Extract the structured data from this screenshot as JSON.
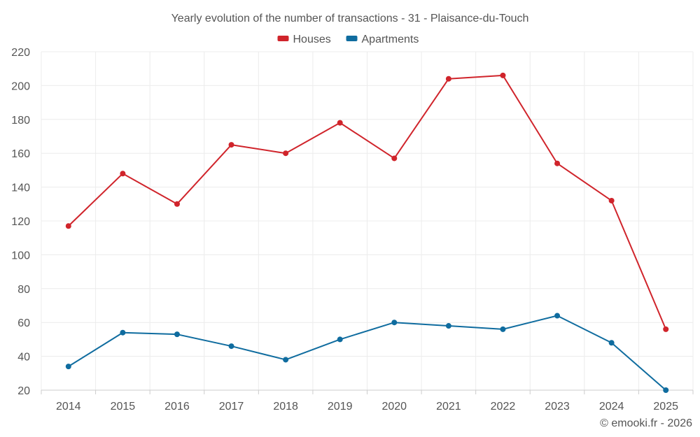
{
  "chart_data": {
    "type": "line",
    "title": "Yearly evolution of the number of transactions - 31 - Plaisance-du-Touch",
    "categories": [
      "2014",
      "2015",
      "2016",
      "2017",
      "2018",
      "2019",
      "2020",
      "2021",
      "2022",
      "2023",
      "2024",
      "2025"
    ],
    "series": [
      {
        "name": "Houses",
        "color": "#d0242b",
        "values": [
          117,
          148,
          130,
          165,
          160,
          178,
          157,
          204,
          206,
          154,
          132,
          56
        ]
      },
      {
        "name": "Apartments",
        "color": "#0f6c9f",
        "values": [
          34,
          54,
          53,
          46,
          38,
          50,
          60,
          58,
          56,
          64,
          48,
          20
        ]
      }
    ],
    "ylim": [
      20,
      220
    ],
    "yticks": [
      20,
      40,
      60,
      80,
      100,
      120,
      140,
      160,
      180,
      200,
      220
    ],
    "xlabel": "",
    "ylabel": "",
    "grid": true,
    "legend": "top-center"
  },
  "credit": "© emooki.fr - 2026"
}
